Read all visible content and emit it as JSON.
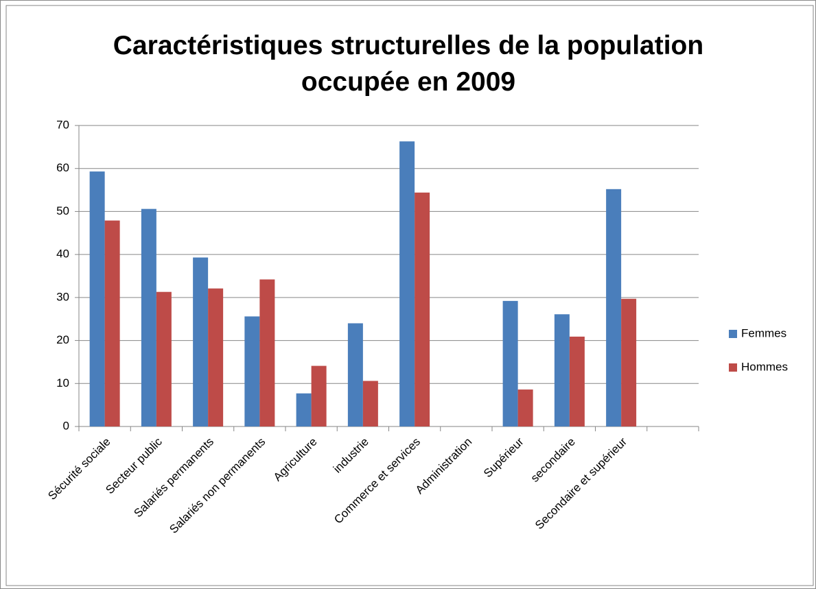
{
  "chart_data": {
    "type": "bar",
    "title": "Caractéristiques structurelles de la population occupée en 2009",
    "categories": [
      "Sécurité sociale",
      "Secteur public",
      "Salariés permanents",
      "Salariés non permanents",
      "Agriculture",
      "industrie",
      "Commerce et services",
      "Administration",
      "Supérieur",
      "secondaire",
      "Secondaire et supérieur",
      null
    ],
    "series": [
      {
        "name": "Femmes",
        "color": "#4a7ebb",
        "values": [
          59.3,
          50.6,
          39.3,
          25.6,
          7.7,
          24.0,
          66.3,
          null,
          29.2,
          26.1,
          55.2,
          null
        ]
      },
      {
        "name": "Hommes",
        "color": "#be4b48",
        "values": [
          47.9,
          31.3,
          32.1,
          34.2,
          14.1,
          10.6,
          54.4,
          null,
          8.6,
          20.9,
          29.7,
          null
        ]
      }
    ],
    "ylim": [
      0,
      70
    ],
    "yticks": [
      0,
      10,
      20,
      30,
      40,
      50,
      60,
      70
    ],
    "grid": true,
    "legend": "right"
  }
}
